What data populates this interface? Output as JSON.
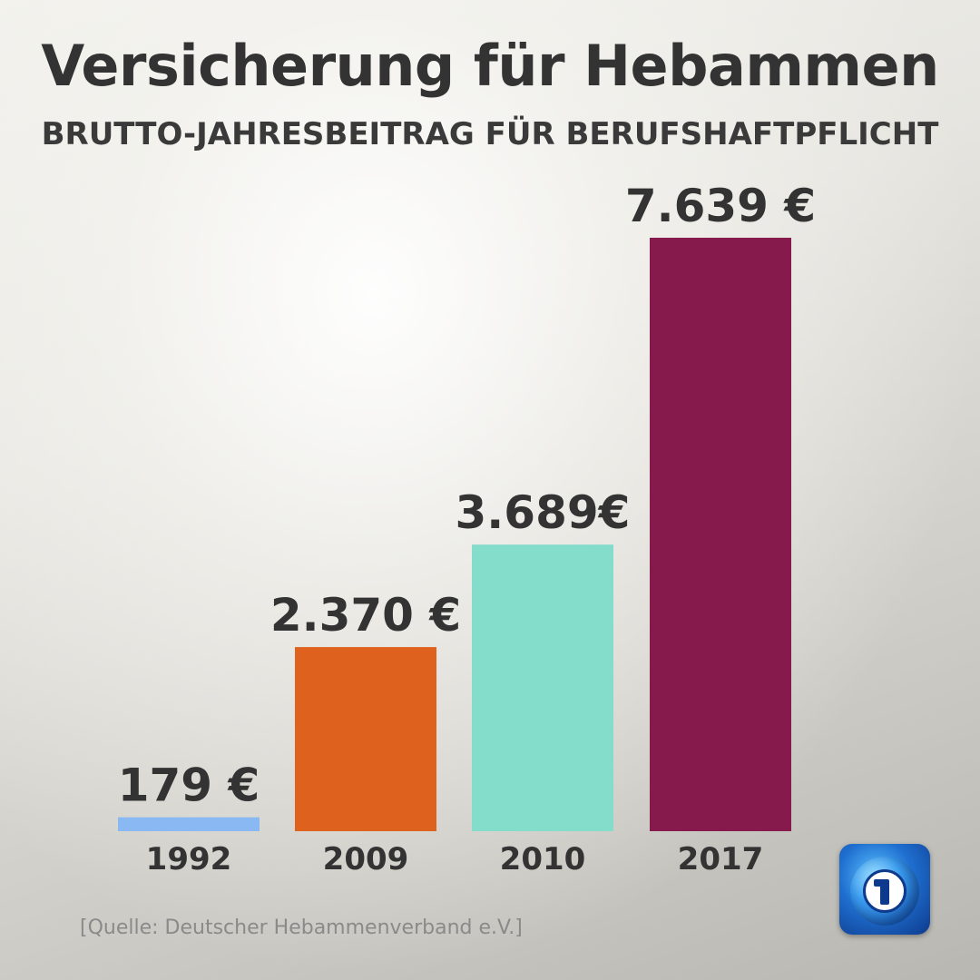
{
  "header": {
    "title": "Versicherung für Hebammen",
    "subtitle": "BRUTTO-JAHRESBEITRAG FÜR BERUFSHAFTPFLICHT"
  },
  "chart_data": {
    "type": "bar",
    "title": "Versicherung für Hebammen",
    "subtitle": "BRUTTO-JAHRESBEITRAG FÜR BERUFSHAFTPFLICHT",
    "categories": [
      "1992",
      "2009",
      "2010",
      "2017"
    ],
    "values": [
      179,
      2370,
      3689,
      7639
    ],
    "value_labels": [
      "179 €",
      "2.370 €",
      "3.689€",
      "7.639 €"
    ],
    "colors": [
      "#8ab8f2",
      "#de621d",
      "#84dccb",
      "#861a4d"
    ],
    "xlabel": "",
    "ylabel": "",
    "ylim": [
      0,
      7639
    ],
    "grid": false,
    "legend": "none"
  },
  "footer": {
    "source": "[Quelle: Deutscher Hebammenverband e.V.]",
    "logo_icon": "tagesschau-logo-icon"
  }
}
